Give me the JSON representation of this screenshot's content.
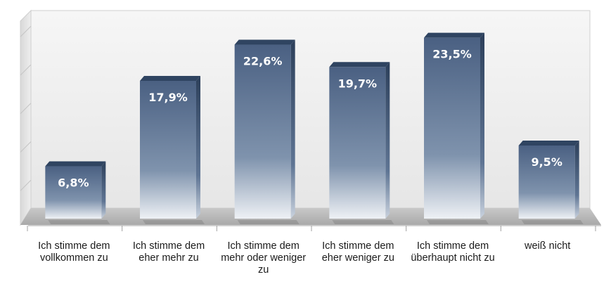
{
  "chart_data": {
    "type": "bar",
    "title": "",
    "xlabel": "",
    "ylabel": "",
    "categories": [
      "Ich stimme dem vollkommen zu",
      "Ich stimme dem eher mehr zu",
      "Ich stimme dem mehr oder weniger zu",
      "Ich stimme dem eher weniger  zu",
      "Ich stimme dem überhaupt nicht zu",
      "weiß nicht"
    ],
    "values": [
      6.8,
      17.9,
      22.6,
      19.7,
      23.5,
      9.5
    ],
    "value_labels": [
      "6,8%",
      "17,9%",
      "22,6%",
      "19,7%",
      "23,5%",
      "9,5%"
    ],
    "ylim": [
      0,
      25
    ],
    "grid": true,
    "legend": "none",
    "colors": {
      "bar_top": "#4f6585",
      "bar_bottom": "#e9edf3",
      "bar_cap": "#2f4461",
      "floor": "#bdbdbd",
      "wall": "#eeeeee"
    }
  }
}
